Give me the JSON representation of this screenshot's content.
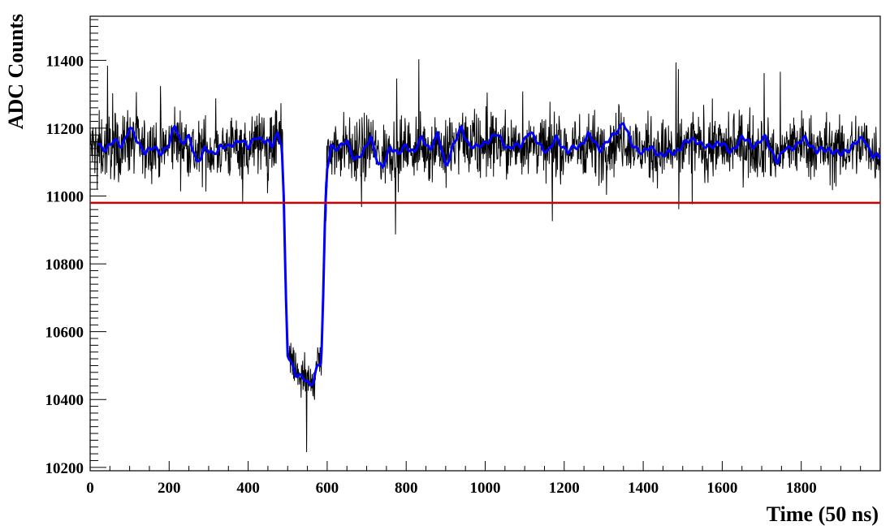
{
  "chart_data": {
    "type": "line",
    "title": "",
    "xlabel": "Time (50 ns)",
    "ylabel": "ADC Counts",
    "xlim": [
      0,
      2000
    ],
    "ylim": [
      10190,
      11530
    ],
    "x_ticks": [
      0,
      200,
      400,
      600,
      800,
      1000,
      1200,
      1400,
      1600,
      1800
    ],
    "x_tick_labels": [
      "0",
      "200",
      "400",
      "600",
      "800",
      "1000",
      "1200",
      "1400",
      "1600",
      "1800"
    ],
    "y_ticks": [
      10200,
      10400,
      10600,
      10800,
      11000,
      11200,
      11400
    ],
    "y_tick_labels": [
      "10200",
      "10400",
      "10600",
      "10800",
      "11000",
      "11200",
      "11400"
    ],
    "grid": false,
    "series": [
      {
        "style": "noisy-waveform",
        "color": "#000000",
        "baseline": 11140,
        "noise_amplitude": 90,
        "x_range": [
          0,
          2000
        ],
        "dip": {
          "fall_start": 480,
          "fall_end": 500,
          "bottom_start": 500,
          "bottom_end": 580,
          "rise_end": 600,
          "bottom_level": 10460,
          "bottom_min": 10245
        }
      },
      {
        "style": "smoothed",
        "color": "#0000ff",
        "x_range": [
          20,
          2000
        ],
        "points": [
          [
            20,
            11150
          ],
          [
            40,
            11140
          ],
          [
            60,
            11160
          ],
          [
            80,
            11150
          ],
          [
            100,
            11200
          ],
          [
            120,
            11160
          ],
          [
            140,
            11130
          ],
          [
            160,
            11140
          ],
          [
            180,
            11130
          ],
          [
            200,
            11150
          ],
          [
            215,
            11210
          ],
          [
            230,
            11160
          ],
          [
            250,
            11170
          ],
          [
            270,
            11100
          ],
          [
            290,
            11140
          ],
          [
            310,
            11120
          ],
          [
            330,
            11150
          ],
          [
            350,
            11140
          ],
          [
            380,
            11170
          ],
          [
            400,
            11140
          ],
          [
            420,
            11180
          ],
          [
            440,
            11160
          ],
          [
            460,
            11150
          ],
          [
            475,
            11190
          ],
          [
            485,
            11150
          ],
          [
            490,
            10990
          ],
          [
            495,
            10720
          ],
          [
            500,
            10530
          ],
          [
            520,
            10480
          ],
          [
            540,
            10460
          ],
          [
            555,
            10440
          ],
          [
            565,
            10460
          ],
          [
            575,
            10500
          ],
          [
            585,
            10510
          ],
          [
            590,
            10700
          ],
          [
            595,
            10950
          ],
          [
            600,
            11080
          ],
          [
            610,
            11150
          ],
          [
            630,
            11140
          ],
          [
            650,
            11160
          ],
          [
            670,
            11110
          ],
          [
            690,
            11120
          ],
          [
            710,
            11180
          ],
          [
            730,
            11090
          ],
          [
            740,
            11080
          ],
          [
            760,
            11150
          ],
          [
            780,
            11120
          ],
          [
            800,
            11150
          ],
          [
            820,
            11130
          ],
          [
            840,
            11170
          ],
          [
            860,
            11140
          ],
          [
            880,
            11180
          ],
          [
            900,
            11090
          ],
          [
            920,
            11150
          ],
          [
            940,
            11200
          ],
          [
            960,
            11150
          ],
          [
            980,
            11140
          ],
          [
            1000,
            11160
          ],
          [
            1030,
            11180
          ],
          [
            1060,
            11140
          ],
          [
            1090,
            11150
          ],
          [
            1110,
            11190
          ],
          [
            1130,
            11160
          ],
          [
            1160,
            11130
          ],
          [
            1180,
            11170
          ],
          [
            1210,
            11130
          ],
          [
            1240,
            11150
          ],
          [
            1260,
            11180
          ],
          [
            1290,
            11140
          ],
          [
            1320,
            11170
          ],
          [
            1350,
            11220
          ],
          [
            1370,
            11150
          ],
          [
            1400,
            11130
          ],
          [
            1420,
            11140
          ],
          [
            1450,
            11120
          ],
          [
            1480,
            11130
          ],
          [
            1500,
            11150
          ],
          [
            1530,
            11170
          ],
          [
            1560,
            11140
          ],
          [
            1590,
            11160
          ],
          [
            1620,
            11130
          ],
          [
            1650,
            11170
          ],
          [
            1680,
            11150
          ],
          [
            1710,
            11170
          ],
          [
            1740,
            11100
          ],
          [
            1760,
            11140
          ],
          [
            1790,
            11150
          ],
          [
            1810,
            11170
          ],
          [
            1840,
            11130
          ],
          [
            1870,
            11140
          ],
          [
            1900,
            11120
          ],
          [
            1930,
            11150
          ],
          [
            1960,
            11170
          ],
          [
            1980,
            11120
          ],
          [
            2000,
            11110
          ]
        ]
      },
      {
        "style": "threshold",
        "color": "#cc0000",
        "y": 10980,
        "x_range": [
          0,
          2000
        ]
      }
    ]
  }
}
